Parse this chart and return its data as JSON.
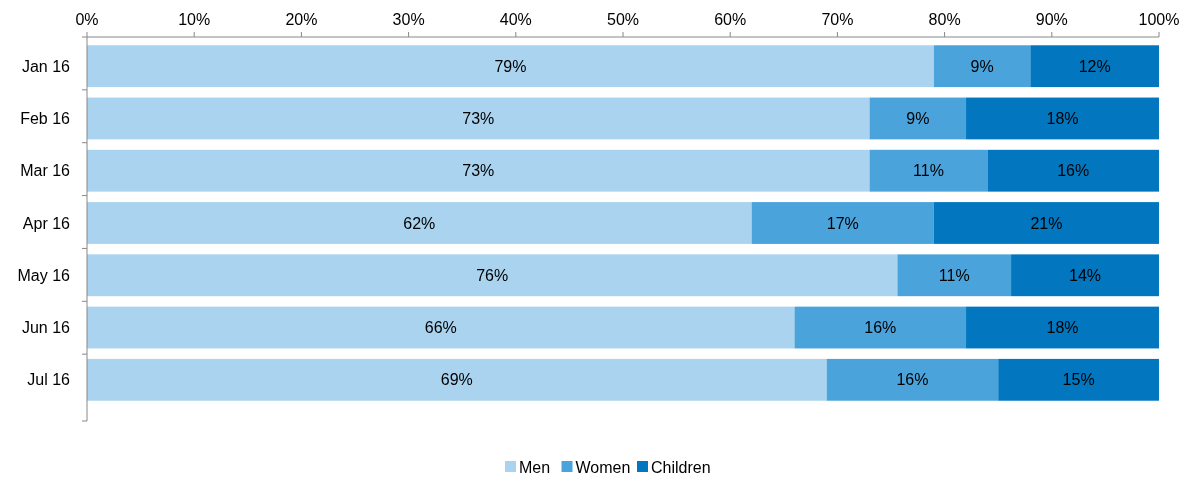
{
  "chart_data": {
    "type": "bar",
    "orientation": "horizontal",
    "stacked": true,
    "categories": [
      "Jan 16",
      "Feb 16",
      "Mar 16",
      "Apr 16",
      "May 16",
      "Jun 16",
      "Jul 16"
    ],
    "series": [
      {
        "name": "Men",
        "color": "#a9d3ef",
        "values": [
          79,
          73,
          73,
          62,
          75.6,
          66,
          69
        ],
        "value_labels": [
          "79%",
          "73%",
          "73%",
          "62%",
          "76%",
          "66%",
          "69%"
        ]
      },
      {
        "name": "Women",
        "color": "#4ba3dc",
        "values": [
          9,
          9,
          11,
          17,
          10.6,
          16,
          16
        ],
        "value_labels": [
          "9%",
          "9%",
          "11%",
          "17%",
          "11%",
          "16%",
          "16%"
        ]
      },
      {
        "name": "Children",
        "color": "#0277bf",
        "values": [
          12,
          18,
          16,
          21,
          13.8,
          18,
          15
        ],
        "value_labels": [
          "12%",
          "18%",
          "16%",
          "21%",
          "14%",
          "18%",
          "15%"
        ]
      }
    ],
    "xlim": [
      0,
      100
    ],
    "xticks": [
      {
        "value": 0,
        "label": "0%"
      },
      {
        "value": 10,
        "label": "10%"
      },
      {
        "value": 20,
        "label": "20%"
      },
      {
        "value": 30,
        "label": "30%"
      },
      {
        "value": 40,
        "label": "40%"
      },
      {
        "value": 50,
        "label": "50%"
      },
      {
        "value": 60,
        "label": "60%"
      },
      {
        "value": 70,
        "label": "70%"
      },
      {
        "value": 80,
        "label": "80%"
      },
      {
        "value": 90,
        "label": "90%"
      },
      {
        "value": 100,
        "label": "100%"
      }
    ],
    "legend": "bottom",
    "grid": false
  }
}
